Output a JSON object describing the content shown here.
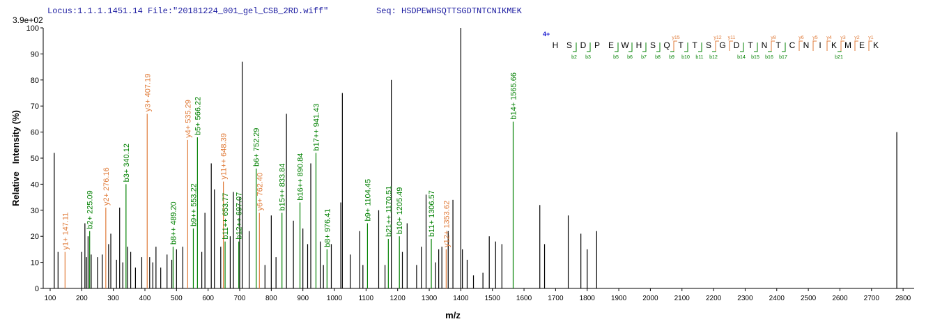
{
  "chart_data": {
    "type": "spectrum",
    "title": "Locus:1.1.1.1451.14 File:\"20181224_001_gel_CSB_2RD.wiff\"",
    "sequence_label": "Seq: HSDPEWHSQTTSGDTNTCNIKMEK",
    "scale_label": "3.9e+02",
    "xlabel": "m/z",
    "ylabel": "Relative   Intensity (%)",
    "xlim": [
      78,
      2835
    ],
    "ylim": [
      0,
      100
    ],
    "xticks": [
      100,
      200,
      300,
      400,
      500,
      600,
      700,
      800,
      900,
      1000,
      1100,
      1200,
      1300,
      1400,
      1500,
      1600,
      1700,
      1800,
      1900,
      2000,
      2100,
      2200,
      2300,
      2400,
      2500,
      2600,
      2700,
      2800
    ],
    "yticks": [
      0,
      10,
      20,
      30,
      40,
      50,
      60,
      70,
      80,
      90,
      100
    ],
    "peaks": {
      "color": "#000000",
      "x": [
        113,
        125,
        200,
        210,
        215,
        220,
        230,
        250,
        265,
        285,
        292,
        310,
        320,
        330,
        345,
        355,
        370,
        390,
        415,
        425,
        435,
        450,
        470,
        485,
        500,
        520,
        580,
        590,
        610,
        620,
        640,
        670,
        680,
        700,
        708,
        730,
        780,
        800,
        815,
        848,
        870,
        900,
        915,
        925,
        955,
        965,
        990,
        1020,
        1025,
        1050,
        1080,
        1090,
        1140,
        1160,
        1180,
        1215,
        1230,
        1260,
        1275,
        1290,
        1320,
        1330,
        1340,
        1360,
        1375,
        1400,
        1405,
        1420,
        1440,
        1470,
        1490,
        1510,
        1530,
        1650,
        1665,
        1740,
        1780,
        1800,
        1830,
        2780
      ],
      "values": [
        52,
        14,
        14,
        25,
        12,
        20,
        13,
        12,
        13,
        17,
        21,
        11,
        31,
        10,
        16,
        14,
        8,
        12,
        12,
        10,
        16,
        8,
        13,
        11,
        15,
        16,
        14,
        29,
        48,
        38,
        16,
        20,
        37,
        35,
        87,
        22,
        9,
        28,
        12,
        67,
        26,
        23,
        17,
        48,
        18,
        9,
        17,
        33,
        75,
        13,
        22,
        9,
        30,
        9,
        80,
        14,
        25,
        9,
        16,
        36,
        10,
        15,
        16,
        22,
        34,
        100,
        15,
        11,
        5,
        6,
        20,
        18,
        17,
        32,
        17,
        28,
        21,
        15,
        22,
        60
      ]
    },
    "annotations": {
      "labels": [
        "y1+ 147.11",
        "b2+ 225.09",
        "y2+ 276.16",
        "b3+ 340.12",
        "y3+ 407.19",
        "b8++ 489.20",
        "y4+ 535.29",
        "b9++ 553.22",
        "b5+ 566.22",
        "y11++ 648.39",
        "b11++ 653.77",
        "b12++ 697.07",
        "b6+ 752.29",
        "y6+ 762.40",
        "b15++ 833.84",
        "b16++ 890.84",
        "b17++ 941.43",
        "b8+ 976.41",
        "b9+ 1104.45",
        "b21++ 1170.51",
        "b10+ 1205.49",
        "b11+ 1306.57",
        "y12+ 1353.62",
        "b14+ 1565.66"
      ],
      "x": [
        147.11,
        225.09,
        276.16,
        340.12,
        407.19,
        489.2,
        535.29,
        553.22,
        566.22,
        648.39,
        653.77,
        697.07,
        752.29,
        762.4,
        833.84,
        890.84,
        941.43,
        976.41,
        1104.45,
        1170.51,
        1205.49,
        1306.57,
        1353.62,
        1565.66
      ],
      "values": [
        14,
        22,
        31,
        40,
        67,
        16,
        57,
        23,
        58,
        41,
        18,
        18,
        46,
        29,
        29,
        33,
        52,
        15,
        25,
        19,
        20,
        19,
        15,
        64
      ],
      "colors": [
        "#e07b39",
        "#008000",
        "#e07b39",
        "#008000",
        "#e07b39",
        "#008000",
        "#e07b39",
        "#008000",
        "#008000",
        "#e07b39",
        "#008000",
        "#008000",
        "#008000",
        "#e07b39",
        "#008000",
        "#008000",
        "#008000",
        "#008000",
        "#008000",
        "#008000",
        "#008000",
        "#008000",
        "#e07b39",
        "#008000"
      ]
    },
    "fragment_map": {
      "charge": "4+",
      "residues": [
        "H",
        "S",
        "D",
        "P",
        "E",
        "W",
        "H",
        "S",
        "Q",
        "T",
        "T",
        "S",
        "G",
        "D",
        "T",
        "N",
        "T",
        "C",
        "N",
        "I",
        "K",
        "M",
        "E",
        "K"
      ],
      "b_ions": {
        "labels": [
          "b2",
          "b3",
          "b5",
          "b6",
          "b7",
          "b8",
          "b9",
          "b10",
          "b11",
          "b12",
          "b14",
          "b15",
          "b16",
          "b17",
          "b21"
        ],
        "after": [
          2,
          3,
          5,
          6,
          7,
          8,
          9,
          10,
          11,
          12,
          14,
          15,
          16,
          17,
          21
        ],
        "color": "#008000"
      },
      "y_ions": {
        "labels": [
          "y15",
          "y12",
          "y11",
          "y8",
          "y6",
          "y5",
          "y4",
          "y3",
          "y2",
          "y1"
        ],
        "after": [
          9,
          12,
          13,
          16,
          18,
          19,
          20,
          21,
          22,
          23
        ],
        "color": "#e07b39"
      }
    }
  }
}
